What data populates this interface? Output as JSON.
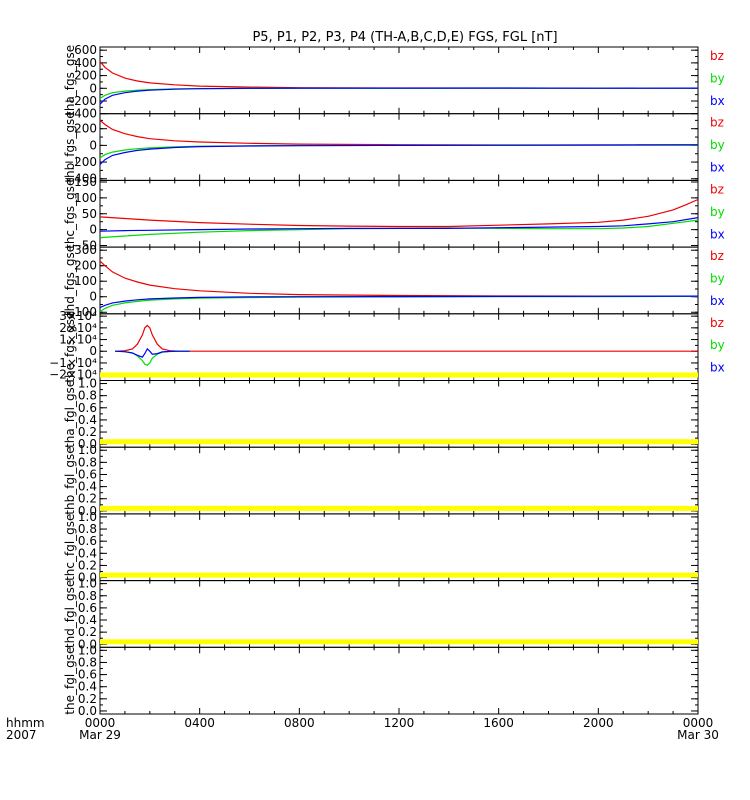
{
  "page": {
    "title": "P5, P1, P2, P3, P4 (TH-A,B,C,D,E) FGS, FGL [nT]"
  },
  "colors": {
    "bx": "#0000ff",
    "by": "#00dd00",
    "bz": "#ee0000",
    "placeholder_band": "#ffff00",
    "frame": "#000000"
  },
  "time_axis": {
    "row_label_1": "hhmm",
    "row_label_2": "2007",
    "range_hours": [
      0,
      24
    ],
    "ticks": [
      {
        "hour": 0,
        "label": "0000",
        "sublabel": "Mar 29"
      },
      {
        "hour": 4,
        "label": "0400",
        "sublabel": ""
      },
      {
        "hour": 8,
        "label": "0800",
        "sublabel": ""
      },
      {
        "hour": 12,
        "label": "1200",
        "sublabel": ""
      },
      {
        "hour": 16,
        "label": "1600",
        "sublabel": ""
      },
      {
        "hour": 20,
        "label": "2000",
        "sublabel": ""
      },
      {
        "hour": 24,
        "label": "0000",
        "sublabel": "Mar 30"
      }
    ]
  },
  "chart_data": [
    {
      "type": "line",
      "ylabel": "tha_fgs_gse",
      "ylim": [
        -400,
        650
      ],
      "yticks": [
        {
          "value": 600,
          "label": "600"
        },
        {
          "value": 400,
          "label": "400"
        },
        {
          "value": 200,
          "label": "200"
        },
        {
          "value": 0,
          "label": "0"
        },
        {
          "value": -200,
          "label": "−200"
        },
        {
          "value": -400,
          "label": "−400"
        }
      ],
      "legend": [
        "bz",
        "by",
        "bx"
      ],
      "series": [
        {
          "name": "bz",
          "x": [
            0,
            0.2,
            0.5,
            1,
            1.5,
            2,
            3,
            4,
            6,
            8,
            12,
            16,
            20,
            24
          ],
          "y": [
            420,
            330,
            240,
            160,
            115,
            85,
            55,
            35,
            18,
            10,
            5,
            3,
            2,
            1
          ]
        },
        {
          "name": "by",
          "x": [
            0,
            0.2,
            0.5,
            1,
            1.5,
            2,
            3,
            4,
            6,
            8,
            12,
            16,
            20,
            24
          ],
          "y": [
            -160,
            -110,
            -70,
            -45,
            -30,
            -20,
            -10,
            -5,
            -2,
            0,
            0,
            0,
            0,
            0
          ]
        },
        {
          "name": "bx",
          "x": [
            0,
            0.2,
            0.5,
            1,
            1.5,
            2,
            3,
            4,
            6,
            8,
            12,
            16,
            20,
            24
          ],
          "y": [
            -250,
            -170,
            -110,
            -70,
            -45,
            -30,
            -15,
            -7,
            0,
            2,
            3,
            4,
            2,
            3
          ]
        }
      ]
    },
    {
      "type": "line",
      "ylabel": "thb_fgs_gse",
      "ylim": [
        -420,
        380
      ],
      "yticks": [
        {
          "value": 200,
          "label": "200"
        },
        {
          "value": 0,
          "label": "0"
        },
        {
          "value": -200,
          "label": "−200"
        },
        {
          "value": -400,
          "label": "−400"
        }
      ],
      "legend": [
        "bz",
        "by",
        "bx"
      ],
      "series": [
        {
          "name": "bz",
          "x": [
            0,
            0.2,
            0.5,
            1,
            1.5,
            2,
            3,
            4,
            6,
            8,
            12,
            16,
            20,
            24
          ],
          "y": [
            300,
            250,
            190,
            140,
            105,
            80,
            55,
            40,
            25,
            15,
            8,
            5,
            4,
            3
          ]
        },
        {
          "name": "by",
          "x": [
            0,
            0.2,
            0.5,
            1,
            1.5,
            2,
            3,
            4,
            6,
            8,
            12,
            16,
            20,
            24
          ],
          "y": [
            -150,
            -110,
            -80,
            -55,
            -40,
            -30,
            -18,
            -10,
            -5,
            -2,
            0,
            0,
            2,
            3
          ]
        },
        {
          "name": "bx",
          "x": [
            0,
            0.2,
            0.5,
            1,
            1.5,
            2,
            3,
            4,
            6,
            8,
            12,
            16,
            20,
            24
          ],
          "y": [
            -230,
            -170,
            -120,
            -85,
            -60,
            -45,
            -25,
            -15,
            -8,
            -4,
            0,
            2,
            5,
            8
          ]
        }
      ]
    },
    {
      "type": "line",
      "ylabel": "thc_fgs_gse",
      "ylim": [
        -55,
        155
      ],
      "yticks": [
        {
          "value": 150,
          "label": "150"
        },
        {
          "value": 100,
          "label": "100"
        },
        {
          "value": 50,
          "label": "50"
        },
        {
          "value": 0,
          "label": "0"
        },
        {
          "value": -50,
          "label": "−50"
        }
      ],
      "legend": [
        "bz",
        "by",
        "bx"
      ],
      "series": [
        {
          "name": "bz",
          "x": [
            0,
            1,
            2,
            4,
            6,
            8,
            10,
            12,
            14,
            16,
            18,
            20,
            21,
            22,
            23,
            23.5,
            24
          ],
          "y": [
            40,
            35,
            30,
            22,
            17,
            13,
            11,
            10,
            10,
            14,
            18,
            23,
            30,
            42,
            62,
            78,
            95
          ]
        },
        {
          "name": "by",
          "x": [
            0,
            1,
            2,
            4,
            6,
            8,
            10,
            12,
            14,
            16,
            18,
            20,
            21,
            22,
            23,
            24
          ],
          "y": [
            -25,
            -20,
            -15,
            -8,
            -3,
            0,
            3,
            4,
            5,
            4,
            3,
            3,
            5,
            10,
            20,
            30
          ]
        },
        {
          "name": "bx",
          "x": [
            0,
            1,
            2,
            4,
            6,
            8,
            10,
            12,
            14,
            16,
            18,
            20,
            21,
            22,
            23,
            24
          ],
          "y": [
            -5,
            -3,
            -2,
            0,
            2,
            3,
            4,
            4,
            4,
            6,
            8,
            10,
            12,
            18,
            25,
            38
          ]
        }
      ]
    },
    {
      "type": "line",
      "ylabel": "thd_fgs_gse",
      "ylim": [
        -110,
        320
      ],
      "yticks": [
        {
          "value": 300,
          "label": "300"
        },
        {
          "value": 200,
          "label": "200"
        },
        {
          "value": 100,
          "label": "100"
        },
        {
          "value": 0,
          "label": "0"
        },
        {
          "value": -100,
          "label": "−100"
        }
      ],
      "legend": [
        "bz",
        "by",
        "bx"
      ],
      "series": [
        {
          "name": "bz",
          "x": [
            0,
            0.2,
            0.5,
            1,
            1.5,
            2,
            3,
            4,
            6,
            8,
            12,
            16,
            20,
            24
          ],
          "y": [
            230,
            200,
            160,
            120,
            95,
            75,
            52,
            38,
            22,
            14,
            8,
            5,
            4,
            4
          ]
        },
        {
          "name": "by",
          "x": [
            0,
            0.2,
            0.5,
            1,
            1.5,
            2,
            3,
            4,
            6,
            8,
            12,
            16,
            20,
            24
          ],
          "y": [
            -95,
            -75,
            -55,
            -40,
            -30,
            -22,
            -14,
            -9,
            -5,
            -3,
            -1,
            0,
            1,
            2
          ]
        },
        {
          "name": "bx",
          "x": [
            0,
            0.2,
            0.5,
            1,
            1.5,
            2,
            3,
            4,
            6,
            8,
            12,
            16,
            20,
            24
          ],
          "y": [
            -70,
            -55,
            -40,
            -28,
            -20,
            -14,
            -8,
            -4,
            -1,
            0,
            1,
            2,
            3,
            4
          ]
        }
      ]
    },
    {
      "type": "line",
      "ylabel": "the_fgs_gse",
      "ylim": [
        -25000,
        32000
      ],
      "yticks": [
        {
          "value": 30000,
          "label": "3×10⁴"
        },
        {
          "value": 20000,
          "label": "2×10⁴"
        },
        {
          "value": 10000,
          "label": "1×10⁴"
        },
        {
          "value": 0,
          "label": "0"
        },
        {
          "value": -10000,
          "label": "−1×10⁴"
        },
        {
          "value": -20000,
          "label": "−2×10⁴"
        }
      ],
      "legend": [
        "bz",
        "by",
        "bx"
      ],
      "series": [
        {
          "name": "bz",
          "x": [
            0.6,
            1.0,
            1.3,
            1.5,
            1.7,
            1.8,
            1.9,
            2.0,
            2.1,
            2.3,
            2.5,
            2.8,
            3.2,
            3.6,
            4,
            8,
            12,
            16,
            20,
            24
          ],
          "y": [
            0,
            500,
            2000,
            6000,
            14000,
            20000,
            22000,
            20000,
            14000,
            6000,
            2000,
            500,
            0,
            0,
            0,
            0,
            0,
            0,
            0,
            0
          ]
        },
        {
          "name": "by",
          "x": [
            0.6,
            1.0,
            1.3,
            1.5,
            1.7,
            1.8,
            1.9,
            2.0,
            2.1,
            2.3,
            2.5,
            2.8,
            3.2,
            3.6
          ],
          "y": [
            0,
            -300,
            -1500,
            -4000,
            -8000,
            -11000,
            -12000,
            -10000,
            -6000,
            -2500,
            -800,
            -200,
            0,
            0
          ]
        },
        {
          "name": "bx",
          "x": [
            0.6,
            1.0,
            1.3,
            1.5,
            1.7,
            1.8,
            1.9,
            2.0,
            2.1,
            2.3,
            2.5,
            2.8,
            3.2,
            3.6
          ],
          "y": [
            0,
            -400,
            -1500,
            -3500,
            -5000,
            -2000,
            2000,
            0,
            -2500,
            -2000,
            -600,
            -150,
            0,
            0
          ]
        }
      ]
    },
    {
      "type": "line",
      "ylabel": "tha_fgl_gse",
      "ylim": [
        -0.05,
        1.05
      ],
      "yticks": [
        {
          "value": 1.0,
          "label": "1.0"
        },
        {
          "value": 0.8,
          "label": "0.8"
        },
        {
          "value": 0.6,
          "label": "0.6"
        },
        {
          "value": 0.4,
          "label": "0.4"
        },
        {
          "value": 0.2,
          "label": "0.2"
        },
        {
          "value": 0.0,
          "label": "0.0"
        }
      ],
      "legend": [],
      "series": []
    },
    {
      "type": "line",
      "ylabel": "thb_fgl_gse",
      "ylim": [
        -0.05,
        1.05
      ],
      "yticks": [
        {
          "value": 1.0,
          "label": "1.0"
        },
        {
          "value": 0.8,
          "label": "0.8"
        },
        {
          "value": 0.6,
          "label": "0.6"
        },
        {
          "value": 0.4,
          "label": "0.4"
        },
        {
          "value": 0.2,
          "label": "0.2"
        },
        {
          "value": 0.0,
          "label": "0.0"
        }
      ],
      "legend": [],
      "series": []
    },
    {
      "type": "line",
      "ylabel": "thc_fgl_gse",
      "ylim": [
        -0.05,
        1.05
      ],
      "yticks": [
        {
          "value": 1.0,
          "label": "1.0"
        },
        {
          "value": 0.8,
          "label": "0.8"
        },
        {
          "value": 0.6,
          "label": "0.6"
        },
        {
          "value": 0.4,
          "label": "0.4"
        },
        {
          "value": 0.2,
          "label": "0.2"
        },
        {
          "value": 0.0,
          "label": "0.0"
        }
      ],
      "legend": [],
      "series": []
    },
    {
      "type": "line",
      "ylabel": "thd_fgl_gse",
      "ylim": [
        -0.05,
        1.05
      ],
      "yticks": [
        {
          "value": 1.0,
          "label": "1.0"
        },
        {
          "value": 0.8,
          "label": "0.8"
        },
        {
          "value": 0.6,
          "label": "0.6"
        },
        {
          "value": 0.4,
          "label": "0.4"
        },
        {
          "value": 0.2,
          "label": "0.2"
        },
        {
          "value": 0.0,
          "label": "0.0"
        }
      ],
      "legend": [],
      "series": []
    },
    {
      "type": "line",
      "ylabel": "the_fgl_gse",
      "ylim": [
        -0.05,
        1.05
      ],
      "yticks": [
        {
          "value": 1.0,
          "label": "1.0"
        },
        {
          "value": 0.8,
          "label": "0.8"
        },
        {
          "value": 0.6,
          "label": "0.6"
        },
        {
          "value": 0.4,
          "label": "0.4"
        },
        {
          "value": 0.2,
          "label": "0.2"
        },
        {
          "value": 0.0,
          "label": "0.0"
        }
      ],
      "legend": [],
      "series": []
    }
  ]
}
